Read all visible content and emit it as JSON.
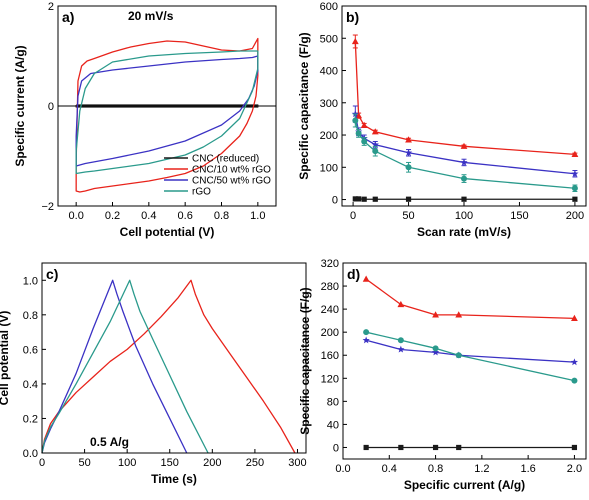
{
  "colors": {
    "CNC (reduced)": "#1a1a1a",
    "CNC/10 wt% rGO": "#e8231b",
    "CNC/50 wt% rGO": "#3b32c4",
    "rGO": "#2a9a8c"
  },
  "chart_data": [
    {
      "id": "a",
      "panel_label": "a)",
      "annotation": "20 mV/s",
      "type": "line",
      "xlabel": "Cell potential (V)",
      "ylabel": "Specific current (A/g)",
      "xlim": [
        -0.1,
        1.1
      ],
      "ylim": [
        -2,
        2
      ],
      "xticks": [
        0.0,
        0.2,
        0.4,
        0.6,
        0.8,
        1.0
      ],
      "xticklabels": [
        "0.0",
        "0.2",
        "0.4",
        "0.6",
        "0.8",
        "1.0"
      ],
      "yticks": [
        -2,
        0,
        2
      ],
      "yticklabels": [
        "−2",
        "0",
        "2"
      ],
      "legend_position": "bottom-right",
      "series": [
        {
          "name": "CNC (reduced)",
          "x": [
            0.0,
            1.0,
            1.0,
            0.0,
            0.0
          ],
          "y": [
            0.02,
            0.02,
            -0.02,
            -0.02,
            0.02
          ]
        },
        {
          "name": "CNC/10 wt% rGO",
          "x": [
            0.0,
            0.01,
            0.03,
            0.06,
            0.1,
            0.2,
            0.3,
            0.4,
            0.5,
            0.6,
            0.7,
            0.8,
            0.9,
            0.97,
            1.0,
            1.0,
            0.99,
            0.97,
            0.94,
            0.9,
            0.8,
            0.7,
            0.6,
            0.5,
            0.4,
            0.3,
            0.2,
            0.1,
            0.05,
            0.02,
            0.0,
            0.0
          ],
          "y": [
            -1.1,
            0.5,
            0.8,
            0.9,
            0.95,
            1.08,
            1.18,
            1.25,
            1.3,
            1.28,
            1.2,
            1.12,
            1.1,
            1.15,
            1.35,
            0.6,
            0.2,
            -0.1,
            -0.35,
            -0.6,
            -0.95,
            -1.2,
            -1.35,
            -1.43,
            -1.5,
            -1.55,
            -1.6,
            -1.65,
            -1.7,
            -1.72,
            -1.7,
            -1.1
          ]
        },
        {
          "name": "CNC/50 wt% rGO",
          "x": [
            0.0,
            0.01,
            0.03,
            0.08,
            0.2,
            0.4,
            0.6,
            0.8,
            0.9,
            0.97,
            1.0,
            1.0,
            0.98,
            0.95,
            0.9,
            0.8,
            0.6,
            0.4,
            0.2,
            0.05,
            0.0,
            0.0
          ],
          "y": [
            -0.6,
            0.2,
            0.5,
            0.65,
            0.72,
            0.8,
            0.88,
            0.93,
            0.95,
            0.97,
            1.0,
            0.7,
            0.4,
            0.15,
            -0.1,
            -0.38,
            -0.7,
            -0.9,
            -1.05,
            -1.15,
            -1.2,
            -0.6
          ]
        },
        {
          "name": "rGO",
          "x": [
            0.0,
            0.02,
            0.05,
            0.1,
            0.2,
            0.4,
            0.6,
            0.8,
            0.9,
            1.0,
            1.0,
            0.97,
            0.9,
            0.8,
            0.7,
            0.6,
            0.4,
            0.2,
            0.1,
            0.05,
            0.0,
            0.0
          ],
          "y": [
            -0.9,
            -0.1,
            0.35,
            0.65,
            0.88,
            1.0,
            1.05,
            1.08,
            1.1,
            1.1,
            0.75,
            0.3,
            -0.25,
            -0.6,
            -0.82,
            -0.98,
            -1.15,
            -1.25,
            -1.3,
            -1.32,
            -1.35,
            -0.9
          ]
        }
      ]
    },
    {
      "id": "b",
      "panel_label": "b)",
      "type": "line",
      "xlabel": "Scan rate (mV/s)",
      "ylabel": "Specific capacitance (F/g)",
      "xlim": [
        -10,
        210
      ],
      "ylim": [
        -20,
        600
      ],
      "xticks": [
        0,
        50,
        100,
        150,
        200
      ],
      "xticklabels": [
        "0",
        "50",
        "100",
        "150",
        "200"
      ],
      "yticks": [
        0,
        100,
        200,
        300,
        400,
        500,
        600
      ],
      "yticklabels": [
        "0",
        "100",
        "200",
        "300",
        "400",
        "500",
        "600"
      ],
      "series": [
        {
          "name": "CNC (reduced)",
          "marker": "square",
          "x": [
            2,
            5,
            10,
            20,
            50,
            100,
            200
          ],
          "y": [
            2,
            2,
            1,
            1,
            1,
            1,
            1
          ],
          "err": [
            0,
            0,
            0,
            0,
            0,
            0,
            0
          ]
        },
        {
          "name": "CNC/10 wt% rGO",
          "marker": "triangle",
          "x": [
            2,
            5,
            10,
            20,
            50,
            100,
            200
          ],
          "y": [
            490,
            260,
            230,
            210,
            185,
            165,
            140
          ],
          "err": [
            20,
            8,
            6,
            5,
            5,
            4,
            4
          ]
        },
        {
          "name": "CNC/50 wt% rGO",
          "marker": "star",
          "x": [
            2,
            5,
            10,
            20,
            50,
            100,
            200
          ],
          "y": [
            265,
            210,
            190,
            170,
            145,
            115,
            80
          ],
          "err": [
            25,
            12,
            10,
            10,
            10,
            10,
            10
          ]
        },
        {
          "name": "rGO",
          "marker": "circle",
          "x": [
            2,
            5,
            10,
            20,
            50,
            100,
            200
          ],
          "y": [
            245,
            205,
            180,
            150,
            100,
            65,
            35
          ],
          "err": [
            20,
            12,
            12,
            15,
            15,
            12,
            10
          ]
        }
      ]
    },
    {
      "id": "c",
      "panel_label": "c)",
      "annotation": "0.5 A/g",
      "type": "line",
      "xlabel": "Time (s)",
      "ylabel": "Cell potential (V)",
      "xlim": [
        0,
        310
      ],
      "ylim": [
        0,
        1.1
      ],
      "xticks": [
        0,
        50,
        100,
        150,
        200,
        250,
        300
      ],
      "xticklabels": [
        "0",
        "50",
        "100",
        "150",
        "200",
        "250",
        "300"
      ],
      "yticks": [
        0.0,
        0.2,
        0.4,
        0.6,
        0.8,
        1.0
      ],
      "yticklabels": [
        "0.0",
        "0.2",
        "0.4",
        "0.6",
        "0.8",
        "1.0"
      ],
      "series": [
        {
          "name": "CNC/10 wt% rGO",
          "x": [
            0,
            3,
            10,
            20,
            40,
            60,
            80,
            100,
            120,
            140,
            160,
            175,
            180,
            190,
            200,
            220,
            240,
            260,
            280,
            297
          ],
          "y": [
            0.0,
            0.08,
            0.17,
            0.24,
            0.35,
            0.44,
            0.53,
            0.6,
            0.69,
            0.79,
            0.9,
            1.0,
            0.92,
            0.8,
            0.72,
            0.58,
            0.44,
            0.3,
            0.15,
            0.0
          ]
        },
        {
          "name": "CNC/50 wt% rGO",
          "x": [
            0,
            3,
            10,
            20,
            40,
            60,
            83,
            88,
            95,
            110,
            130,
            150,
            170
          ],
          "y": [
            0.0,
            0.06,
            0.14,
            0.24,
            0.46,
            0.72,
            1.0,
            0.92,
            0.82,
            0.62,
            0.4,
            0.2,
            0.0
          ]
        },
        {
          "name": "rGO",
          "x": [
            0,
            3,
            10,
            20,
            40,
            60,
            80,
            103,
            108,
            115,
            130,
            150,
            170,
            195
          ],
          "y": [
            0.0,
            0.07,
            0.15,
            0.23,
            0.4,
            0.58,
            0.76,
            1.0,
            0.92,
            0.82,
            0.66,
            0.45,
            0.24,
            0.0
          ]
        }
      ]
    },
    {
      "id": "d",
      "panel_label": "d)",
      "type": "line",
      "xlabel": "Specific current (A/g)",
      "ylabel": "Specific capacitance (F/g)",
      "xlim": [
        0.0,
        2.1
      ],
      "ylim": [
        -20,
        320
      ],
      "xticks": [
        0.0,
        0.4,
        0.8,
        1.2,
        1.6,
        2.0
      ],
      "xticklabels": [
        "0.0",
        "0.4",
        "0.8",
        "1.2",
        "1.6",
        "2.0"
      ],
      "yticks": [
        0,
        40,
        80,
        120,
        160,
        200,
        240,
        280,
        320
      ],
      "yticklabels": [
        "0",
        "40",
        "80",
        "120",
        "160",
        "200",
        "240",
        "280",
        "320"
      ],
      "series": [
        {
          "name": "CNC (reduced)",
          "marker": "square",
          "x": [
            0.2,
            0.5,
            0.8,
            1.0,
            2.0
          ],
          "y": [
            0,
            0,
            0,
            0,
            0
          ]
        },
        {
          "name": "CNC/10 wt% rGO",
          "marker": "triangle",
          "x": [
            0.2,
            0.5,
            0.8,
            1.0,
            2.0
          ],
          "y": [
            292,
            248,
            230,
            230,
            224
          ]
        },
        {
          "name": "CNC/50 wt% rGO",
          "marker": "star",
          "x": [
            0.2,
            0.5,
            0.8,
            1.0,
            2.0
          ],
          "y": [
            186,
            170,
            165,
            160,
            148
          ]
        },
        {
          "name": "rGO",
          "marker": "circle",
          "x": [
            0.2,
            0.5,
            0.8,
            1.0,
            2.0
          ],
          "y": [
            200,
            186,
            172,
            160,
            116
          ]
        }
      ]
    }
  ]
}
